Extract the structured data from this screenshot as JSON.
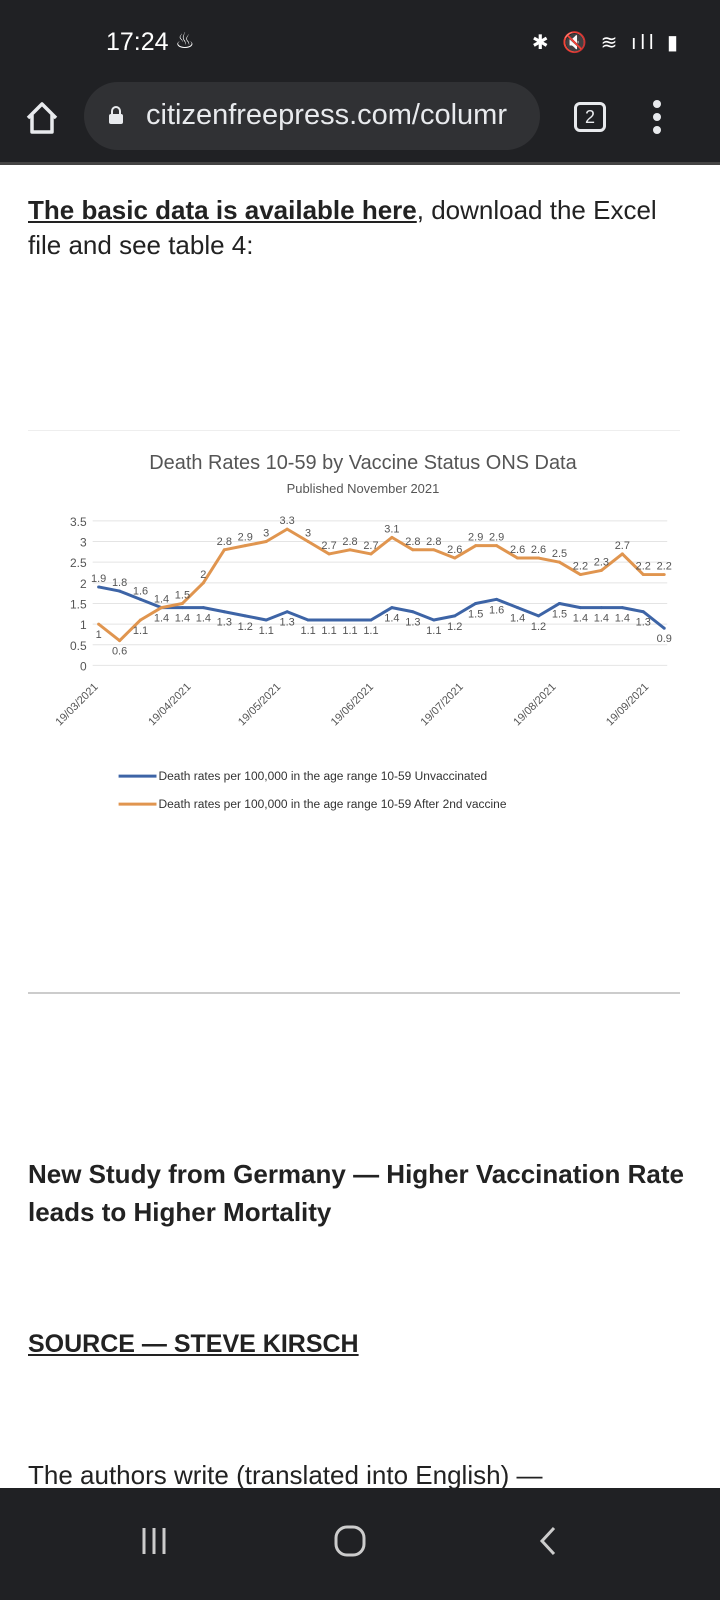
{
  "status_bar": {
    "time": "17:24",
    "icons": [
      "notification-icon",
      "bluetooth-icon",
      "mute-icon",
      "wifi-icon",
      "signal-icon",
      "battery-icon"
    ]
  },
  "browser": {
    "url": "citizenfreepress.com/columr",
    "tab_count": "2"
  },
  "article": {
    "link_text": "The basic data is available here",
    "intro_rest": ", download the Excel file and see table 4:",
    "heading": "New Study from Germany — Higher Vaccination Rate leads to Higher Mortality",
    "source": "SOURCE — STEVE KIRSCH",
    "paragraph": "The authors write (translated into English) —"
  },
  "chart_data": {
    "type": "line",
    "title": "Death Rates 10-59  by Vaccine Status ONS Data",
    "subtitle": "Published November 2021",
    "ylim": [
      0,
      3.5
    ],
    "yticks": [
      "0",
      "0.5",
      "1",
      "1.5",
      "2",
      "2.5",
      "3",
      "3.5"
    ],
    "xticks": [
      "19/03/2021",
      "19/04/2021",
      "19/05/2021",
      "19/06/2021",
      "19/07/2021",
      "19/08/2021",
      "19/09/2021"
    ],
    "x_start": "19/03/2021",
    "x_interval": "weekly",
    "grid": true,
    "legend": "bottom",
    "series": [
      {
        "name": "Death rates per 100,000 in the age range 10-59 Unvaccinated",
        "color": "#3d64a6",
        "values": [
          1.9,
          1.8,
          1.6,
          1.4,
          1.4,
          1.4,
          1.3,
          1.2,
          1.1,
          1.3,
          1.1,
          1.1,
          1.1,
          1.1,
          1.4,
          1.3,
          1.1,
          1.2,
          1.5,
          1.6,
          1.4,
          1.2,
          1.5,
          1.4,
          1.4,
          1.4,
          1.3,
          0.9
        ]
      },
      {
        "name": "Death rates per 100,000 in the age range 10-59 After 2nd  vaccine",
        "color": "#e0954f",
        "values": [
          1,
          0.6,
          1.1,
          1.4,
          1.5,
          2,
          2.8,
          2.9,
          3,
          3.3,
          3,
          2.7,
          2.8,
          2.7,
          3.1,
          2.8,
          2.8,
          2.6,
          2.9,
          2.9,
          2.6,
          2.6,
          2.5,
          2.2,
          2.3,
          2.7,
          2.2,
          2.2
        ]
      }
    ]
  }
}
